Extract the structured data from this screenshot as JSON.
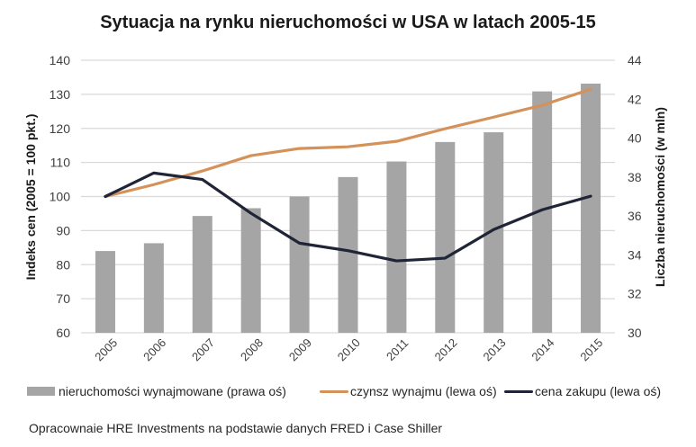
{
  "title": "Sytuacja na rynku nieruchomości w USA w latach 2005-15",
  "source_note": "Opracownaie HRE Investments na podstawie danych FRED i Case Shiller",
  "legend": [
    {
      "label": "nieruchomości wynajmowane (prawa oś)",
      "kind": "bar",
      "color": "#a5a5a5"
    },
    {
      "label": "czynsz wynajmu (lewa oś)",
      "kind": "line",
      "color": "#d4915a"
    },
    {
      "label": "cena zakupu (lewa oś)",
      "kind": "line",
      "color": "#1f2536"
    }
  ],
  "colors": {
    "bar": "#a5a5a5",
    "rent": "#d4915a",
    "price": "#1f2536",
    "grid": "#d9d9d9",
    "text": "#404040"
  },
  "chart_data": {
    "type": "bar+line",
    "title": "Sytuacja na rynku nieruchomości w USA w latach 2005-15",
    "categories": [
      "2005",
      "2006",
      "2007",
      "2008",
      "2009",
      "2010",
      "2011",
      "2012",
      "2013",
      "2014",
      "2015"
    ],
    "ylabel": "Indeks cen (2005 = 100 pkt.)",
    "ylim": [
      60,
      140
    ],
    "yticks": [
      60,
      70,
      80,
      90,
      100,
      110,
      120,
      130,
      140
    ],
    "y2label": "Liczba nieruchomości (w mln)",
    "y2lim": [
      30,
      44
    ],
    "y2ticks": [
      30,
      32,
      34,
      36,
      38,
      40,
      42,
      44
    ],
    "grid": true,
    "legend_position": "bottom",
    "series": [
      {
        "name": "nieruchomości wynajmowane (prawa oś)",
        "type": "bar",
        "axis": "right",
        "values": [
          34.2,
          34.6,
          36.0,
          36.4,
          37.0,
          38.0,
          38.8,
          39.8,
          40.3,
          42.4,
          42.8
        ]
      },
      {
        "name": "czynsz wynajmu (lewa oś)",
        "type": "line",
        "axis": "left",
        "values": [
          100.0,
          103.5,
          107.5,
          112.0,
          114.1,
          114.6,
          116.2,
          119.9,
          123.3,
          126.8,
          131.5
        ]
      },
      {
        "name": "cena zakupu (lewa oś)",
        "type": "line",
        "axis": "left",
        "values": [
          100.0,
          106.9,
          105.0,
          95.1,
          86.3,
          84.1,
          81.1,
          81.9,
          90.3,
          96.1,
          100.1
        ]
      }
    ]
  }
}
